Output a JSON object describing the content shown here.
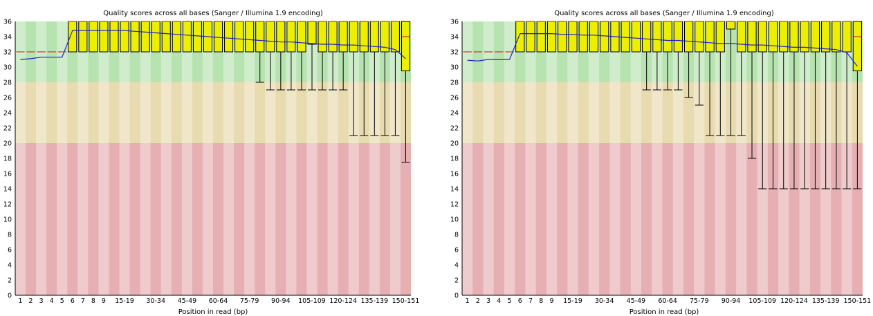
{
  "chart_data": [
    {
      "type": "box",
      "title": "Quality scores across all bases (Sanger / Illumina 1.9 encoding)",
      "xlabel": "Position in read (bp)",
      "ylabel": "",
      "ylim": [
        0,
        36
      ],
      "yticks": [
        0,
        2,
        4,
        6,
        8,
        10,
        12,
        14,
        16,
        18,
        20,
        22,
        24,
        26,
        28,
        30,
        32,
        34,
        36
      ],
      "zones": [
        {
          "from": 28,
          "to": 36,
          "color": "#b6e3b0"
        },
        {
          "from": 20,
          "to": 28,
          "color": "#e8dbb0"
        },
        {
          "from": 0,
          "to": 20,
          "color": "#e6b0b3"
        }
      ],
      "categories": [
        "1",
        "2",
        "3",
        "4",
        "5",
        "6",
        "7",
        "8",
        "9",
        "10-14",
        "15-19",
        "20-24",
        "25-29",
        "30-34",
        "35-39",
        "40-44",
        "45-49",
        "50-54",
        "55-59",
        "60-64",
        "65-69",
        "70-74",
        "75-79",
        "80-84",
        "85-89",
        "90-94",
        "95-99",
        "100-104",
        "105-109",
        "110-114",
        "115-119",
        "120-124",
        "125-129",
        "130-134",
        "135-139",
        "140-144",
        "145-149",
        "150-151"
      ],
      "x_tick_labels": [
        "1",
        "2",
        "3",
        "4",
        "5",
        "6",
        "7",
        "8",
        "9",
        "15-19",
        "30-34",
        "45-49",
        "60-64",
        "75-79",
        "90-94",
        "105-109",
        "120-124",
        "135-139",
        "150-151"
      ],
      "series": [
        {
          "name": "mean",
          "values": [
            31,
            31.1,
            31.3,
            31.3,
            31.3,
            34.8,
            34.8,
            34.8,
            34.8,
            34.8,
            34.8,
            34.7,
            34.6,
            34.5,
            34.4,
            34.3,
            34.2,
            34.1,
            34.0,
            33.9,
            33.8,
            33.7,
            33.6,
            33.5,
            33.4,
            33.3,
            33.3,
            33.2,
            33.1,
            33.0,
            33.0,
            32.9,
            32.9,
            32.8,
            32.7,
            32.6,
            32.3,
            31.1
          ]
        },
        {
          "name": "median",
          "values": [
            32,
            32,
            32,
            32,
            32,
            36,
            36,
            36,
            36,
            36,
            36,
            36,
            36,
            36,
            36,
            36,
            36,
            36,
            36,
            36,
            36,
            36,
            36,
            36,
            36,
            36,
            36,
            36,
            36,
            36,
            36,
            36,
            36,
            36,
            36,
            36,
            36,
            34
          ]
        },
        {
          "name": "lower_quartile",
          "values": [
            32,
            32,
            32,
            32,
            32,
            32,
            32,
            32,
            32,
            32,
            32,
            32,
            32,
            32,
            32,
            32,
            32,
            32,
            32,
            32,
            32,
            32,
            32,
            32,
            32,
            32,
            32,
            32,
            33,
            32,
            32,
            32,
            32,
            32,
            32,
            32,
            32,
            29.5
          ]
        },
        {
          "name": "upper_quartile",
          "values": [
            32,
            32,
            32,
            32,
            32,
            36,
            36,
            36,
            36,
            36,
            36,
            36,
            36,
            36,
            36,
            36,
            36,
            36,
            36,
            36,
            36,
            36,
            36,
            36,
            36,
            36,
            36,
            36,
            36,
            36,
            36,
            36,
            36,
            36,
            36,
            36,
            36,
            36
          ]
        },
        {
          "name": "lower_whisker",
          "values": [
            32,
            32,
            32,
            32,
            32,
            32,
            32,
            32,
            32,
            32,
            32,
            32,
            32,
            32,
            32,
            32,
            32,
            32,
            32,
            32,
            32,
            32,
            32,
            28,
            27,
            27,
            27,
            27,
            27,
            27,
            27,
            27,
            21,
            21,
            21,
            21,
            21,
            17.5
          ]
        },
        {
          "name": "upper_whisker",
          "values": [
            32,
            32,
            32,
            32,
            32,
            36,
            36,
            36,
            36,
            36,
            36,
            36,
            36,
            36,
            36,
            36,
            36,
            36,
            36,
            36,
            36,
            36,
            36,
            36,
            36,
            36,
            36,
            36,
            36,
            36,
            36,
            36,
            36,
            36,
            36,
            36,
            36,
            36
          ]
        }
      ]
    },
    {
      "type": "box",
      "title": "Quality scores across all bases (Sanger / Illumina 1.9 encoding)",
      "xlabel": "Position in read (bp)",
      "ylabel": "",
      "ylim": [
        0,
        36
      ],
      "yticks": [
        0,
        2,
        4,
        6,
        8,
        10,
        12,
        14,
        16,
        18,
        20,
        22,
        24,
        26,
        28,
        30,
        32,
        34,
        36
      ],
      "zones": [
        {
          "from": 28,
          "to": 36,
          "color": "#b6e3b0"
        },
        {
          "from": 20,
          "to": 28,
          "color": "#e8dbb0"
        },
        {
          "from": 0,
          "to": 20,
          "color": "#e6b0b3"
        }
      ],
      "categories": [
        "1",
        "2",
        "3",
        "4",
        "5",
        "6",
        "7",
        "8",
        "9",
        "10-14",
        "15-19",
        "20-24",
        "25-29",
        "30-34",
        "35-39",
        "40-44",
        "45-49",
        "50-54",
        "55-59",
        "60-64",
        "65-69",
        "70-74",
        "75-79",
        "80-84",
        "85-89",
        "90-94",
        "95-99",
        "100-104",
        "105-109",
        "110-114",
        "115-119",
        "120-124",
        "125-129",
        "130-134",
        "135-139",
        "140-144",
        "145-149",
        "150-151"
      ],
      "x_tick_labels": [
        "1",
        "2",
        "3",
        "4",
        "5",
        "6",
        "7",
        "8",
        "9",
        "15-19",
        "30-34",
        "45-49",
        "60-64",
        "75-79",
        "90-94",
        "105-109",
        "120-124",
        "135-139",
        "150-151"
      ],
      "series": [
        {
          "name": "mean",
          "values": [
            30.9,
            30.8,
            31.0,
            31.0,
            31.0,
            34.4,
            34.4,
            34.4,
            34.4,
            34.3,
            34.3,
            34.2,
            34.2,
            34.1,
            34.0,
            33.9,
            33.8,
            33.7,
            33.6,
            33.5,
            33.5,
            33.4,
            33.3,
            33.2,
            33.1,
            33.1,
            33.0,
            32.9,
            32.9,
            32.8,
            32.7,
            32.6,
            32.6,
            32.5,
            32.4,
            32.3,
            31.9,
            30.1
          ]
        },
        {
          "name": "median",
          "values": [
            32,
            32,
            32,
            32,
            32,
            36,
            36,
            36,
            36,
            36,
            36,
            36,
            36,
            36,
            36,
            36,
            36,
            36,
            36,
            36,
            36,
            36,
            36,
            36,
            36,
            36,
            36,
            36,
            36,
            36,
            36,
            36,
            36,
            36,
            36,
            36,
            36,
            34
          ]
        },
        {
          "name": "lower_quartile",
          "values": [
            32,
            32,
            32,
            32,
            32,
            32,
            32,
            32,
            32,
            32,
            32,
            32,
            32,
            32,
            32,
            32,
            32,
            32,
            32,
            32,
            32,
            32,
            32,
            32,
            32,
            35,
            32,
            32,
            32,
            32,
            32,
            32,
            32,
            32,
            32,
            32,
            32,
            29.5
          ]
        },
        {
          "name": "upper_quartile",
          "values": [
            32,
            32,
            32,
            32,
            32,
            36,
            36,
            36,
            36,
            36,
            36,
            36,
            36,
            36,
            36,
            36,
            36,
            36,
            36,
            36,
            36,
            36,
            36,
            36,
            36,
            36,
            36,
            36,
            36,
            36,
            36,
            36,
            36,
            36,
            36,
            36,
            36,
            36
          ]
        },
        {
          "name": "lower_whisker",
          "values": [
            32,
            32,
            32,
            32,
            32,
            32,
            32,
            32,
            32,
            32,
            32,
            32,
            32,
            32,
            32,
            32,
            32,
            27,
            27,
            27,
            27,
            26,
            25,
            21,
            21,
            21,
            21,
            18,
            14,
            14,
            14,
            14,
            14,
            14,
            14,
            14,
            14,
            14
          ]
        },
        {
          "name": "upper_whisker",
          "values": [
            32,
            32,
            32,
            32,
            32,
            36,
            36,
            36,
            36,
            36,
            36,
            36,
            36,
            36,
            36,
            36,
            36,
            36,
            36,
            36,
            36,
            36,
            36,
            36,
            36,
            36,
            36,
            36,
            36,
            36,
            36,
            36,
            36,
            36,
            36,
            36,
            36,
            36
          ]
        }
      ]
    }
  ]
}
